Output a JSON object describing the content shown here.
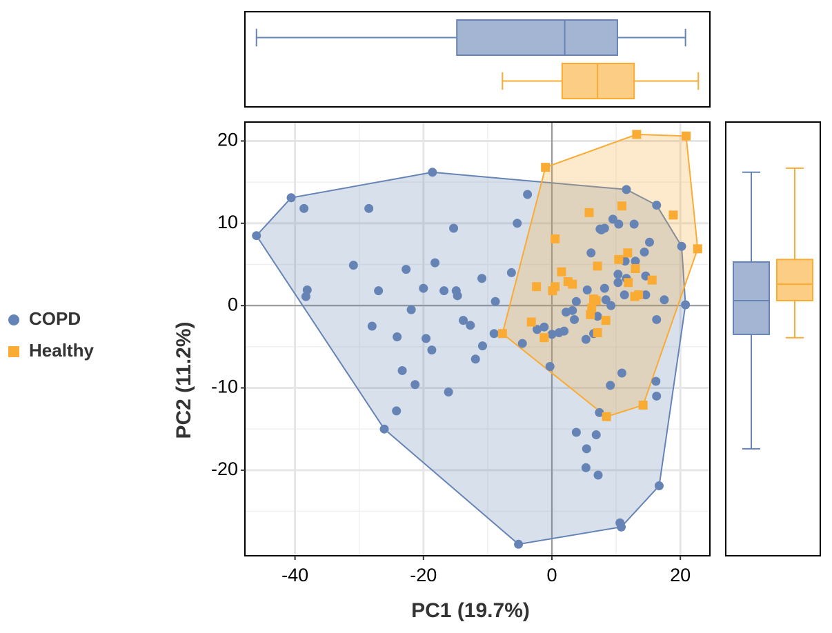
{
  "chart_data": {
    "type": "scatter",
    "xlabel": "PC1  (19.7%)",
    "ylabel": "PC2  (11.2%)",
    "xlim": [
      -47.8,
      24.6
    ],
    "ylim": [
      -30.4,
      22.3
    ],
    "xticks": [
      -40,
      -20,
      0,
      20
    ],
    "yticks": [
      -20,
      -10,
      0,
      10,
      20
    ],
    "xminor": [
      -30,
      -10,
      10
    ],
    "yminor": [
      -25,
      -15,
      -5,
      5,
      15
    ],
    "grid": true,
    "legend": "left",
    "series": [
      {
        "name": "COPD",
        "color": "#6584b5",
        "marker": "circle",
        "x": [
          -46.0,
          -40.6,
          -38.6,
          -38.1,
          -38.3,
          -28.5,
          -18.6,
          -30.9,
          -27.0,
          -28.0,
          -22.7,
          -21.9,
          -24.1,
          -23.3,
          -24.2,
          -26.1,
          -21.3,
          -20.0,
          -19.6,
          -18.7,
          -18.2,
          -16.8,
          -15.3,
          -14.9,
          -14.7,
          -16.1,
          -13.8,
          -12.7,
          -11.9,
          -10.8,
          -10.9,
          -8.8,
          -9.0,
          -6.3,
          -5.4,
          -3.8,
          -4.6,
          -5.2,
          -1.2,
          -2.3,
          -0.3,
          0,
          1.1,
          1.9,
          2.2,
          3.2,
          3.8,
          3.5,
          5.5,
          5.3,
          6.5,
          6.1,
          7.5,
          8.2,
          7.7,
          9.5,
          10.4,
          11.6,
          16.3,
          12.8,
          10.3,
          13.0,
          11.4,
          14.4,
          15.2,
          14.6,
          11.6,
          10.3,
          8.2,
          9.2,
          11.3,
          14.6,
          17.5,
          16.3,
          20.2,
          20.8,
          9.1,
          10.9,
          16.2,
          16.3,
          7.4,
          3.8,
          6.9,
          5.4,
          5.3,
          7.2,
          16.7,
          10.6,
          10.8,
          7.1,
          8.4
        ],
        "y": [
          8.5,
          13.1,
          11.8,
          1.9,
          1.1,
          11.8,
          16.2,
          4.9,
          1.8,
          -2.5,
          4.4,
          -0.5,
          -3.8,
          -7.9,
          -12.8,
          -15.0,
          -9.6,
          2.1,
          -4.0,
          -5.4,
          5.2,
          1.8,
          9.4,
          1.8,
          1.2,
          -10.5,
          -1.8,
          -2.4,
          -6.5,
          -4.9,
          3.3,
          0.5,
          -3.4,
          4.0,
          10.0,
          13.5,
          -4.6,
          -29.0,
          -2.6,
          -2.9,
          -7.4,
          -3.5,
          -3.3,
          -3.1,
          -0.8,
          -0.6,
          0.5,
          -1.7,
          1.9,
          -4.1,
          -3.4,
          6.4,
          9.3,
          9.4,
          9.2,
          10.5,
          9.9,
          14.1,
          12.2,
          9.9,
          3.8,
          5.4,
          5.4,
          6.5,
          7.7,
          3.6,
          3.3,
          2.8,
          2.1,
          0,
          1.3,
          1.3,
          0.7,
          -1.7,
          7.2,
          0.1,
          -9.7,
          -8.2,
          -9.2,
          -11.0,
          -13.0,
          -15.4,
          -15.7,
          -17.4,
          -19.7,
          -20.6,
          -21.9,
          -26.4,
          -26.9,
          -1.3,
          0.7
        ],
        "box_x": [
          -46.0,
          -14.8,
          2.0,
          10.2,
          20.8
        ],
        "box_y": [
          -17.4,
          -3.5,
          0.6,
          5.3,
          16.2
        ]
      },
      {
        "name": "Healthy",
        "color": "#f9ab33",
        "marker": "square",
        "x": [
          13.2,
          20.9,
          -1.0,
          22.7,
          18.9,
          10.9,
          5.8,
          0.5,
          11.8,
          10.4,
          13.0,
          7.1,
          1.5,
          2.5,
          3.2,
          -2.4,
          0.5,
          0.1,
          11.9,
          15.6,
          13.5,
          12.9,
          6.5,
          6.9,
          6.2,
          6.0,
          8.4,
          7.1,
          -3.2,
          -1.2,
          -7.7,
          14.2,
          8.5
        ],
        "y": [
          20.8,
          20.6,
          16.8,
          6.9,
          11.0,
          12.1,
          11.3,
          8.1,
          6.4,
          5.6,
          4.5,
          4.8,
          4.1,
          2.9,
          2.6,
          2.3,
          2.3,
          1.8,
          2.8,
          3.1,
          1.3,
          1.1,
          0.8,
          0.6,
          -0.3,
          -1.1,
          -1.8,
          -3.3,
          -2.0,
          -3.9,
          -3.4,
          -12.1,
          -13.5
        ],
        "box_x": [
          -7.7,
          1.6,
          7.1,
          12.8,
          22.8
        ],
        "box_y": [
          -3.9,
          0.6,
          2.6,
          5.6,
          16.7
        ]
      }
    ]
  }
}
